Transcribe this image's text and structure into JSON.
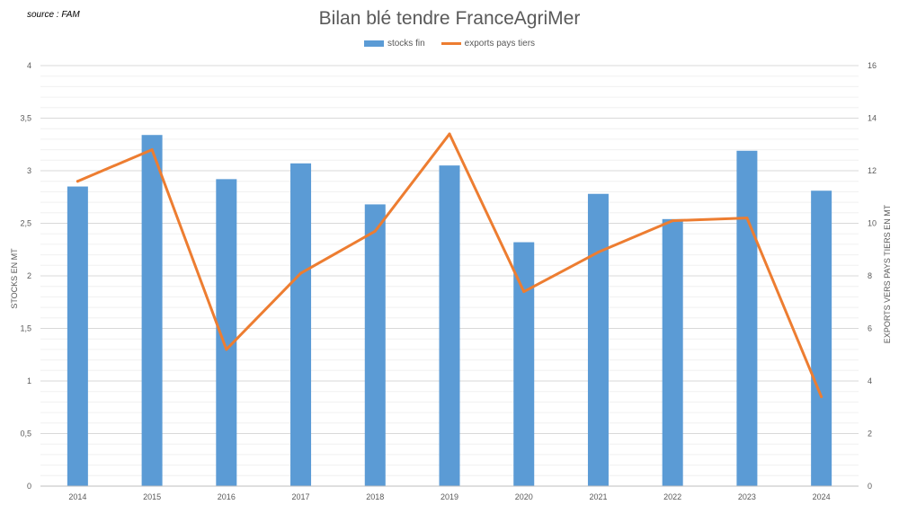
{
  "source_note": "source : FAM",
  "chart_data": {
    "type": "bar",
    "title": "Bilan blé tendre FranceAgriMer",
    "categories": [
      "2014",
      "2015",
      "2016",
      "2017",
      "2018",
      "2019",
      "2020",
      "2021",
      "2022",
      "2023",
      "2024"
    ],
    "series": [
      {
        "name": "stocks fin",
        "type": "bar",
        "axis": "left",
        "color": "#5b9bd5",
        "values": [
          2.85,
          3.34,
          2.92,
          3.07,
          2.68,
          3.05,
          2.32,
          2.78,
          2.54,
          3.19,
          2.81
        ]
      },
      {
        "name": "exports pays tiers",
        "type": "line",
        "axis": "right",
        "color": "#ed7d31",
        "values": [
          11.6,
          12.8,
          5.2,
          8.1,
          9.7,
          13.4,
          7.4,
          8.9,
          10.1,
          10.2,
          3.4
        ]
      }
    ],
    "ylabel": "STOCKS EN MT",
    "y2label": "EXPORTS VERS PAYS TIERS EN MT",
    "ylim": [
      0,
      4
    ],
    "y2lim": [
      0,
      16
    ],
    "yticks": [
      "0",
      "0,5",
      "1",
      "1,5",
      "2",
      "2,5",
      "3",
      "3,5",
      "4"
    ],
    "y2ticks": [
      "0",
      "2",
      "4",
      "6",
      "8",
      "10",
      "12",
      "14",
      "16"
    ],
    "grid": true,
    "legend_position": "top"
  }
}
